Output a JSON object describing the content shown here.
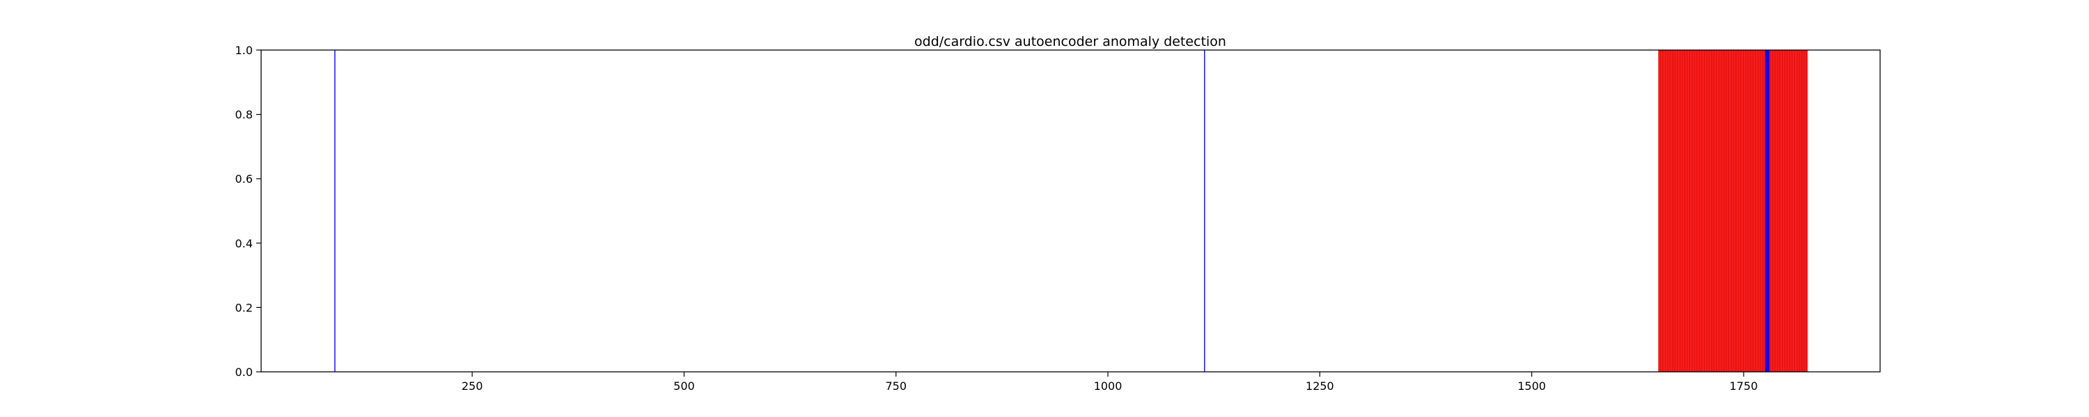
{
  "chart_data": {
    "type": "bar",
    "title": "odd/cardio.csv autoencoder anomaly detection",
    "xlabel": "",
    "ylabel": "",
    "xlim": [
      1,
      1911
    ],
    "ylim": [
      0,
      1
    ],
    "grid": false,
    "x_ticks": [
      250,
      500,
      750,
      1000,
      1250,
      1500,
      1750
    ],
    "y_ticks": [
      0.0,
      0.2,
      0.4,
      0.6,
      0.8,
      1.0
    ],
    "series": [
      {
        "color": "#0000ff",
        "range": [],
        "x": [
          88,
          1114,
          1776,
          1777,
          1778,
          1779,
          1780
        ]
      },
      {
        "color": "#ff0000",
        "range": [
          1650,
          1825
        ],
        "x": []
      }
    ]
  }
}
